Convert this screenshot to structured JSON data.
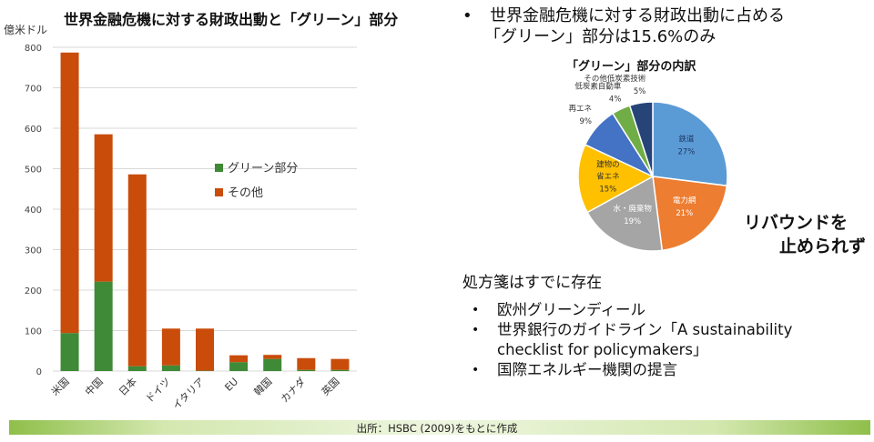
{
  "chart_data": [
    {
      "type": "bar",
      "stacked": true,
      "title": "世界金融危機に対する財政出動と「グリーン」部分",
      "ylabel": "億米ドル",
      "ylim": [
        0,
        800
      ],
      "yticks": [
        0,
        100,
        200,
        300,
        400,
        500,
        600,
        700,
        800
      ],
      "grid": true,
      "legend": "right",
      "categories": [
        "米国",
        "中国",
        "日本",
        "ドイツ",
        "イタリア",
        "EU",
        "韓国",
        "カナダ",
        "英国"
      ],
      "series": [
        {
          "name": "グリーン部分",
          "color": "#3e8a36",
          "values": [
            94,
            221,
            12,
            14,
            1,
            22,
            30,
            3,
            3
          ]
        },
        {
          "name": "その他",
          "color": "#c94c0a",
          "values": [
            693,
            364,
            474,
            91,
            104,
            17,
            10,
            29,
            27
          ]
        }
      ]
    },
    {
      "type": "pie",
      "title": "「グリーン」部分の内訳",
      "slices": [
        {
          "label": "鉄道",
          "value": 27,
          "pct": "27%",
          "color": "#5b9bd5",
          "text_color": "#1f3864"
        },
        {
          "label": "電力網",
          "value": 21,
          "pct": "21%",
          "color": "#ed7d31",
          "text_color": "#ffffff"
        },
        {
          "label": "水・廃棄物",
          "value": 19,
          "pct": "19%",
          "color": "#a5a5a5",
          "text_color": "#ffffff"
        },
        {
          "label": "建物の省エネ",
          "value": 15,
          "pct": "15%",
          "color": "#ffc000",
          "text_color": "#333333"
        },
        {
          "label": "再エネ",
          "value": 9,
          "pct": "9%",
          "color": "#4472c4",
          "text_color": "#333333"
        },
        {
          "label": "低炭素自動車",
          "value": 4,
          "pct": "4%",
          "color": "#70ad47",
          "text_color": "#333333"
        },
        {
          "label": "その他低炭素技術",
          "value": 5,
          "pct": "5%",
          "color": "#264478",
          "text_color": "#333333"
        }
      ]
    }
  ],
  "text": {
    "bar_title": "世界金融危機に対する財政出動と「グリーン」部分",
    "unit": "億米ドル",
    "bullet_marker": "•",
    "headline_line1": "世界金融危機に対する財政出動に占める",
    "headline_line2": "「グリーン」部分は15.6%のみ",
    "pie_title": "「グリーン」部分の内訳",
    "rebound_line1": "リバウンドを",
    "rebound_line2": "止められず",
    "rx_heading": "処方箋はすでに存在",
    "rx_items": [
      "欧州グリーンディール",
      "世界銀行のガイドライン「A sustainability",
      "checklist for policymakers」",
      "国際エネルギー機関の提言"
    ],
    "footer": "出所：HSBC (2009)をもとに作成"
  },
  "colors": {
    "green": "#3e8a36",
    "orange": "#c94c0a",
    "footer_band": "#8fbf4a"
  }
}
